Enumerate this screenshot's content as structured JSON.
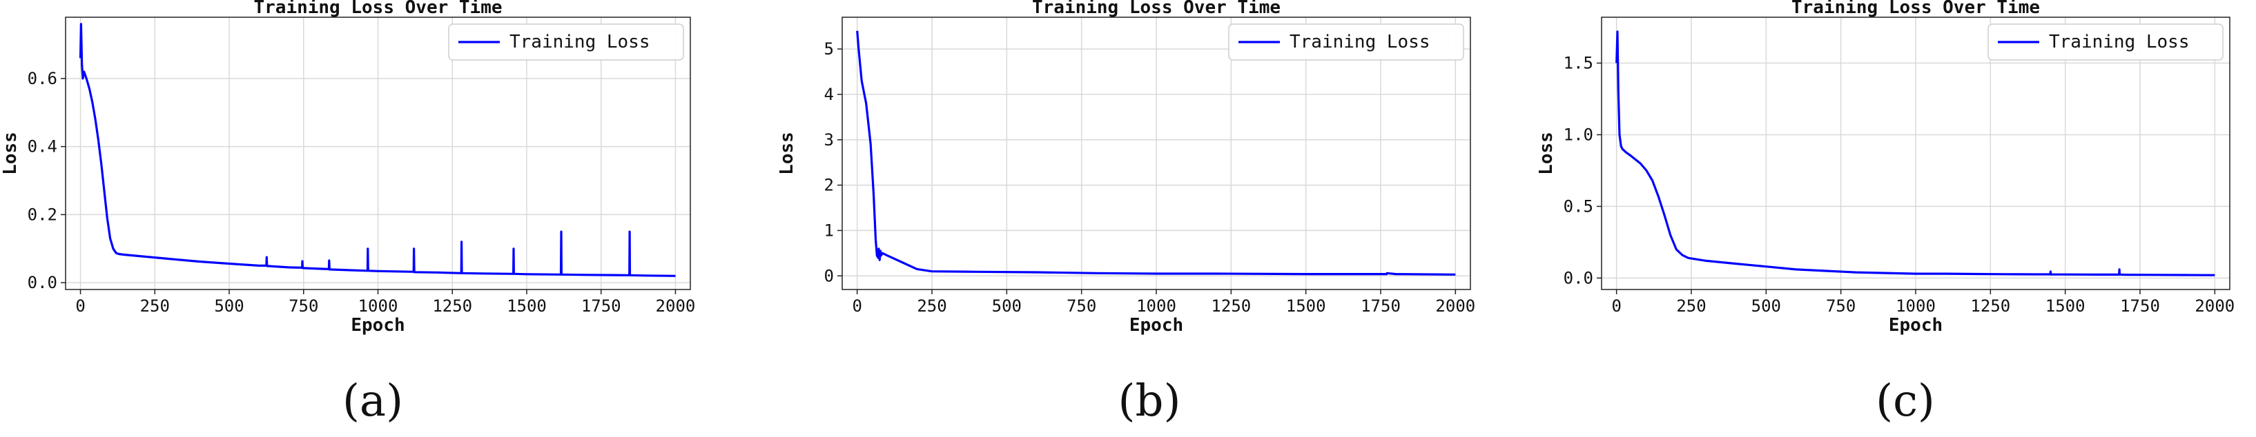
{
  "chart_data": [
    {
      "type": "line",
      "title": "Training Loss Over Time",
      "xlabel": "Epoch",
      "ylabel": "Loss",
      "panel_label": "(a)",
      "xlim": [
        -50,
        2050
      ],
      "ylim": [
        -0.02,
        0.78
      ],
      "xticks": [
        0,
        250,
        500,
        750,
        1000,
        1250,
        1500,
        1750,
        2000
      ],
      "yticks": [
        0.0,
        0.2,
        0.4,
        0.6
      ],
      "ytick_labels": [
        "0.0",
        "0.2",
        "0.4",
        "0.6"
      ],
      "grid": true,
      "legend_position": "top-right",
      "series": [
        {
          "name": "Training Loss",
          "color": "#0000ff",
          "x": [
            0,
            2,
            5,
            8,
            12,
            20,
            30,
            40,
            50,
            60,
            70,
            80,
            90,
            100,
            110,
            120,
            130,
            140,
            150,
            200,
            250,
            300,
            400,
            500,
            600,
            625,
            626,
            627,
            700,
            745,
            746,
            747,
            800,
            835,
            836,
            837,
            900,
            965,
            966,
            967,
            1000,
            1120,
            1121,
            1122,
            1200,
            1280,
            1281,
            1282,
            1350,
            1455,
            1456,
            1457,
            1500,
            1615,
            1616,
            1617,
            1700,
            1845,
            1846,
            1847,
            1900,
            2000
          ],
          "y": [
            0.66,
            0.76,
            0.64,
            0.6,
            0.62,
            0.6,
            0.57,
            0.53,
            0.48,
            0.42,
            0.35,
            0.27,
            0.19,
            0.13,
            0.1,
            0.087,
            0.084,
            0.083,
            0.082,
            0.078,
            0.074,
            0.07,
            0.062,
            0.056,
            0.05,
            0.05,
            0.075,
            0.049,
            0.045,
            0.044,
            0.063,
            0.043,
            0.041,
            0.04,
            0.065,
            0.039,
            0.037,
            0.035,
            0.1,
            0.035,
            0.034,
            0.032,
            0.1,
            0.031,
            0.03,
            0.028,
            0.12,
            0.028,
            0.027,
            0.026,
            0.1,
            0.026,
            0.025,
            0.024,
            0.15,
            0.024,
            0.023,
            0.022,
            0.15,
            0.022,
            0.021,
            0.02
          ]
        }
      ]
    },
    {
      "type": "line",
      "title": "Training Loss Over Time",
      "xlabel": "Epoch",
      "ylabel": "Loss",
      "panel_label": "(b)",
      "xlim": [
        -50,
        2050
      ],
      "ylim": [
        -0.3,
        5.7
      ],
      "xticks": [
        0,
        250,
        500,
        750,
        1000,
        1250,
        1500,
        1750,
        2000
      ],
      "yticks": [
        0,
        1,
        2,
        3,
        4,
        5
      ],
      "ytick_labels": [
        "0",
        "1",
        "2",
        "3",
        "4",
        "5"
      ],
      "grid": true,
      "legend_position": "top-right",
      "series": [
        {
          "name": "Training Loss",
          "color": "#0000ff",
          "x": [
            0,
            5,
            15,
            30,
            45,
            55,
            62,
            66,
            70,
            72,
            75,
            78,
            80,
            85,
            100,
            150,
            200,
            250,
            400,
            600,
            800,
            1000,
            1200,
            1500,
            1770,
            1771,
            1800,
            2000
          ],
          "y": [
            5.4,
            5.0,
            4.3,
            3.8,
            2.9,
            1.8,
            0.8,
            0.45,
            0.4,
            0.6,
            0.35,
            0.55,
            0.45,
            0.5,
            0.45,
            0.3,
            0.15,
            0.1,
            0.09,
            0.08,
            0.06,
            0.05,
            0.05,
            0.04,
            0.04,
            0.06,
            0.04,
            0.03
          ]
        }
      ]
    },
    {
      "type": "line",
      "title": "Training Loss Over Time",
      "xlabel": "Epoch",
      "ylabel": "Loss",
      "panel_label": "(c)",
      "xlim": [
        -50,
        2050
      ],
      "ylim": [
        -0.08,
        1.82
      ],
      "xticks": [
        0,
        250,
        500,
        750,
        1000,
        1250,
        1500,
        1750,
        2000
      ],
      "yticks": [
        0.0,
        0.5,
        1.0,
        1.5
      ],
      "ytick_labels": [
        "0.0",
        "0.5",
        "1.0",
        "1.5"
      ],
      "grid": true,
      "legend_position": "top-right",
      "series": [
        {
          "name": "Training Loss",
          "color": "#0000ff",
          "x": [
            0,
            3,
            6,
            10,
            15,
            20,
            25,
            30,
            50,
            80,
            100,
            120,
            140,
            160,
            180,
            200,
            220,
            240,
            300,
            400,
            500,
            600,
            700,
            800,
            900,
            1000,
            1100,
            1200,
            1300,
            1400,
            1450,
            1451,
            1452,
            1500,
            1600,
            1680,
            1681,
            1682,
            1700,
            1800,
            1900,
            2000
          ],
          "y": [
            1.5,
            1.72,
            1.3,
            1.0,
            0.92,
            0.9,
            0.89,
            0.88,
            0.85,
            0.8,
            0.75,
            0.68,
            0.57,
            0.44,
            0.3,
            0.2,
            0.16,
            0.14,
            0.12,
            0.1,
            0.08,
            0.06,
            0.05,
            0.04,
            0.035,
            0.03,
            0.03,
            0.028,
            0.027,
            0.026,
            0.026,
            0.045,
            0.025,
            0.025,
            0.024,
            0.024,
            0.06,
            0.024,
            0.023,
            0.022,
            0.021,
            0.02
          ]
        }
      ]
    }
  ]
}
